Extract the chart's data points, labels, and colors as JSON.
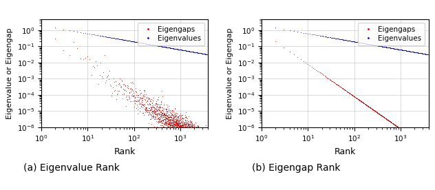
{
  "title_a": "(a) Eigenvalue Rank",
  "title_b": "(b) Eigengap Rank",
  "ylabel": "Eigenvalue or Eigengap",
  "xlabel": "Rank",
  "n_eigenvalues": 4000,
  "eigenvalue_color": "#0000cc",
  "eigengap_color": "#cc0000",
  "legend_labels": [
    "Eigengaps",
    "Eigenvalues"
  ],
  "legend_colors": [
    "#cc0000",
    "#0000cc"
  ],
  "ylim": [
    1e-06,
    5
  ],
  "xlim": [
    1,
    4000
  ],
  "ev_scale": 2.0,
  "ev_alpha": 0.5,
  "eg_b_scale": 0.8,
  "eg_b_alpha": 2.0,
  "eg_a_noise_std": 0.9,
  "marker_size": 1.5
}
